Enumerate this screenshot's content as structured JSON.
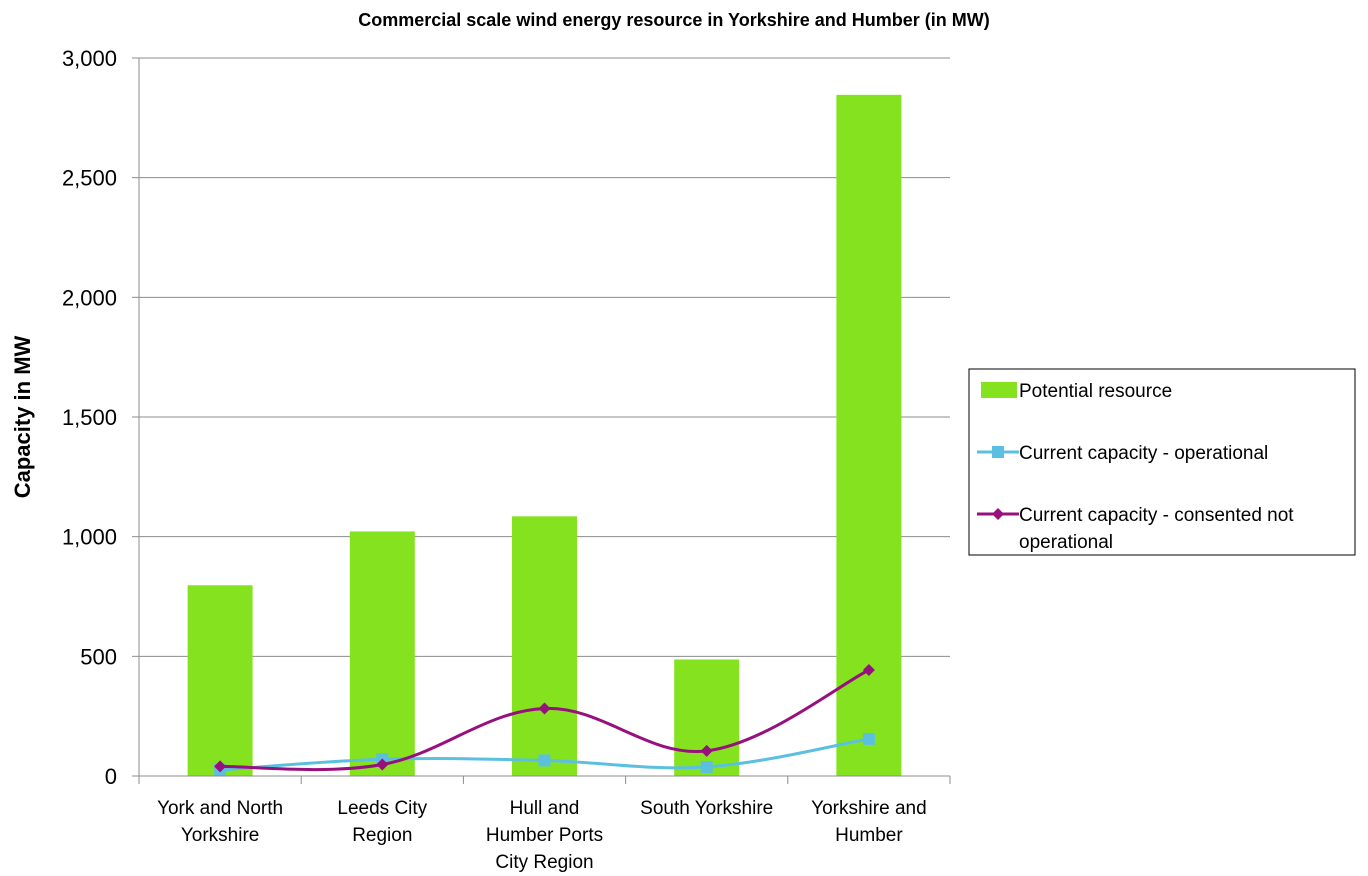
{
  "chart_data": {
    "type": "bar",
    "title": "Commercial scale wind energy resource in Yorkshire and Humber (in MW)",
    "ylabel": "Capacity in MW",
    "xlabel": "",
    "ylim": [
      0,
      3000
    ],
    "yticks": [
      0,
      500,
      1000,
      1500,
      2000,
      2500,
      3000
    ],
    "ytick_labels": [
      "0",
      "500",
      "1,000",
      "1,500",
      "2,000",
      "2,500",
      "3,000"
    ],
    "grid": true,
    "legend_position": "right",
    "categories": [
      [
        "York and North",
        "Yorkshire"
      ],
      [
        "Leeds City",
        "Region"
      ],
      [
        "Hull and",
        "Humber Ports",
        "City Region"
      ],
      [
        "South Yorkshire"
      ],
      [
        "Yorkshire and",
        "Humber"
      ]
    ],
    "series": [
      {
        "name": "Potential resource",
        "kind": "bar",
        "color": "#84e31e",
        "values": [
          797,
          1022,
          1085,
          487,
          2846
        ]
      },
      {
        "name": "Current capacity - operational",
        "kind": "line",
        "marker": "square",
        "color": "#5bc0e0",
        "values": [
          25,
          70,
          65,
          38,
          155
        ]
      },
      {
        "name": "Current capacity - consented not operational",
        "kind": "line",
        "marker": "diamond",
        "color": "#98107e",
        "values": [
          40,
          48,
          282,
          105,
          443
        ]
      }
    ],
    "legend_entries": [
      [
        "Potential resource"
      ],
      [
        "Current capacity - operational"
      ],
      [
        "Current capacity - consented not",
        "operational"
      ]
    ]
  }
}
